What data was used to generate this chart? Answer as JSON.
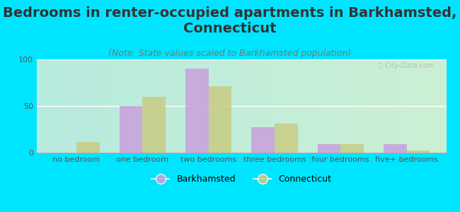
{
  "title": "Bedrooms in renter-occupied apartments in Barkhamsted,\nConnecticut",
  "subtitle": "(Note: State values scaled to Barkhamsted population)",
  "categories": [
    "no bedroom",
    "one bedroom",
    "two bedrooms",
    "three bedrooms",
    "four bedrooms",
    "five+ bedrooms"
  ],
  "barkhamsted": [
    0,
    50,
    90,
    27,
    9,
    9
  ],
  "connecticut": [
    11,
    60,
    71,
    31,
    9,
    2
  ],
  "bar_color_barkhamsted": "#c9a0dc",
  "bar_color_connecticut": "#c8cc84",
  "background_outer": "#00e5ff",
  "ylim": [
    0,
    100
  ],
  "yticks": [
    0,
    50,
    100
  ],
  "legend_barkhamsted": "Barkhamsted",
  "legend_connecticut": "Connecticut",
  "title_fontsize": 14,
  "subtitle_fontsize": 9,
  "tick_fontsize": 8,
  "legend_fontsize": 9
}
